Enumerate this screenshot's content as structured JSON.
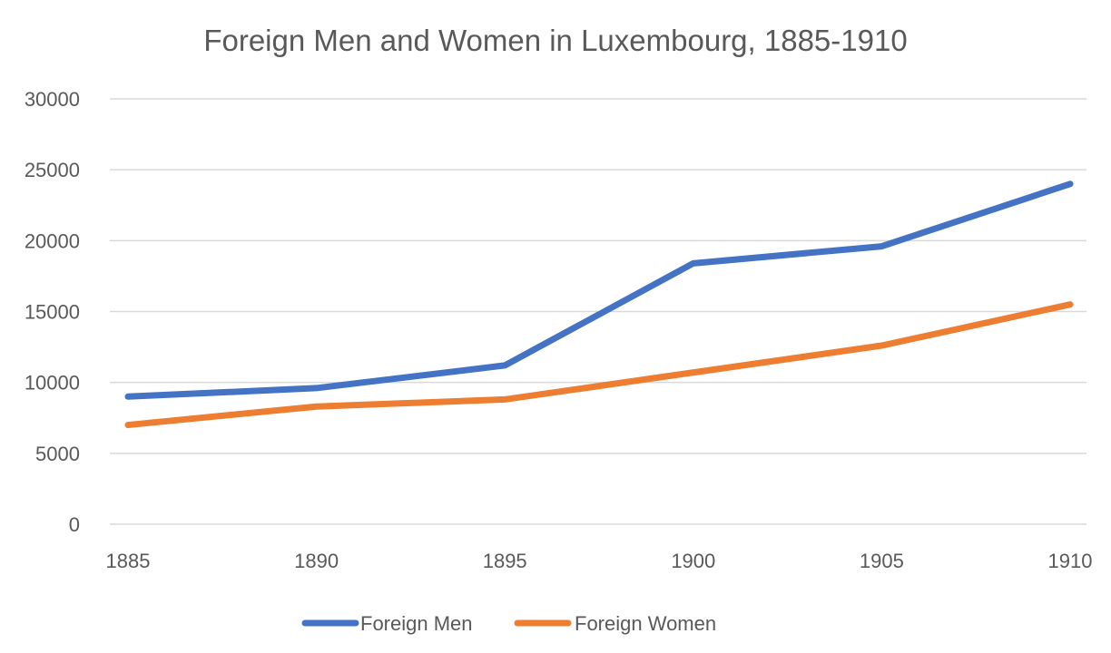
{
  "chart_data": {
    "type": "line",
    "title": "Foreign Men and Women in Luxembourg, 1885-1910",
    "xlabel": "",
    "ylabel": "",
    "categories": [
      "1885",
      "1890",
      "1895",
      "1900",
      "1905",
      "1910"
    ],
    "series": [
      {
        "name": "Foreign Men",
        "color": "#4472C4",
        "values": [
          9000,
          9600,
          11200,
          18400,
          19600,
          24000
        ]
      },
      {
        "name": "Foreign Women",
        "color": "#ED7D31",
        "values": [
          7000,
          8300,
          8800,
          10700,
          12600,
          15500
        ]
      }
    ],
    "ylim": [
      0,
      30000
    ],
    "yticks": [
      "0",
      "5000",
      "10000",
      "15000",
      "20000",
      "25000",
      "30000"
    ],
    "grid": true,
    "legend_position": "bottom"
  },
  "colors": {
    "grid": "#D9D9D9",
    "text": "#595959",
    "background": "#FFFFFF"
  }
}
